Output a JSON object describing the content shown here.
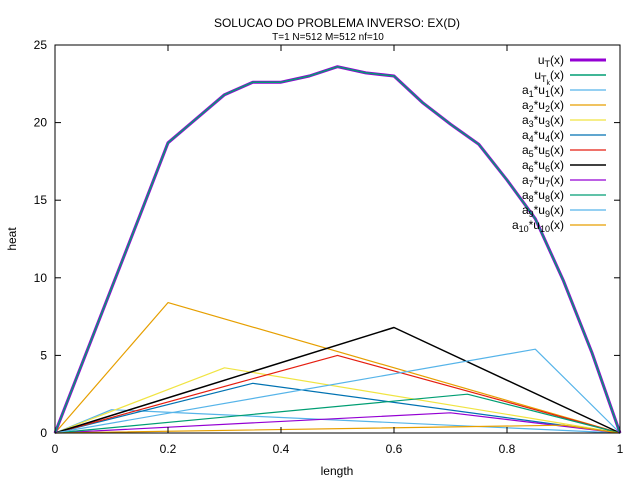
{
  "chart_data": {
    "type": "line",
    "title": "SOLUCAO DO PROBLEMA INVERSO: EX(D)",
    "subtitle": "T=1 N=512 M=512 nf=10",
    "xlabel": "length",
    "ylabel": "heat",
    "xlim": [
      0,
      1
    ],
    "ylim": [
      0,
      25
    ],
    "xticks": [
      0,
      0.2,
      0.4,
      0.6,
      0.8,
      1
    ],
    "yticks": [
      0,
      5,
      10,
      15,
      20,
      25
    ],
    "xtick_labels": [
      "0",
      "0.2",
      "0.4",
      "0.6",
      "0.8",
      "1"
    ],
    "ytick_labels": [
      "0",
      "5",
      "10",
      "15",
      "20",
      "25"
    ],
    "grid": false,
    "legend_position": "top-right",
    "series": [
      {
        "name": "u_T(x)",
        "label_base": "u",
        "label_sub": "T",
        "label_sub2": "",
        "label_suffix": "(x)",
        "color": "#9400d3",
        "width": 3,
        "x": [
          0,
          0.15,
          0.2,
          0.3,
          0.35,
          0.4,
          0.45,
          0.5,
          0.55,
          0.6,
          0.65,
          0.7,
          0.75,
          0.8,
          0.85,
          0.9,
          0.95,
          1
        ],
        "y": [
          0,
          14,
          18.7,
          21.8,
          22.6,
          22.6,
          23.0,
          23.6,
          23.2,
          23.0,
          21.3,
          19.9,
          18.6,
          16.3,
          13.8,
          9.8,
          5.2,
          0
        ]
      },
      {
        "name": "u_Tk(x)",
        "label_base": "u",
        "label_sub": "T",
        "label_sub2": "k",
        "label_suffix": "(x)",
        "color": "#009e73",
        "width": 1.5,
        "x": [
          0,
          0.15,
          0.2,
          0.3,
          0.35,
          0.4,
          0.45,
          0.5,
          0.55,
          0.6,
          0.65,
          0.7,
          0.75,
          0.8,
          0.85,
          0.9,
          0.95,
          1
        ],
        "y": [
          0,
          14,
          18.7,
          21.8,
          22.6,
          22.6,
          23.0,
          23.6,
          23.2,
          23.0,
          21.3,
          19.9,
          18.6,
          16.3,
          13.8,
          9.8,
          5.2,
          0
        ]
      },
      {
        "name": "a1*u1(x)",
        "label_base": "a",
        "label_sub": "1",
        "label_mid": "*u",
        "label_sub2": "1",
        "label_suffix": "(x)",
        "color": "#56b4e9",
        "width": 1.2,
        "x": [
          0,
          0.1,
          1
        ],
        "y": [
          0,
          1.5,
          0
        ]
      },
      {
        "name": "a2*u2(x)",
        "label_base": "a",
        "label_sub": "2",
        "label_mid": "*u",
        "label_sub2": "2",
        "label_suffix": "(x)",
        "color": "#e69f00",
        "width": 1.2,
        "x": [
          0,
          0.2,
          1
        ],
        "y": [
          0,
          8.4,
          0
        ]
      },
      {
        "name": "a3*u3(x)",
        "label_base": "a",
        "label_sub": "3",
        "label_mid": "*u",
        "label_sub2": "3",
        "label_suffix": "(x)",
        "color": "#f0e442",
        "width": 1.2,
        "x": [
          0,
          0.3,
          1
        ],
        "y": [
          0,
          4.2,
          0
        ]
      },
      {
        "name": "a4*u4(x)",
        "label_base": "a",
        "label_sub": "4",
        "label_mid": "*u",
        "label_sub2": "4",
        "label_suffix": "(x)",
        "color": "#0072b2",
        "width": 1.2,
        "x": [
          0,
          0.35,
          1
        ],
        "y": [
          0,
          3.2,
          0
        ]
      },
      {
        "name": "a5*u5(x)",
        "label_base": "a",
        "label_sub": "5",
        "label_mid": "*u",
        "label_sub2": "5",
        "label_suffix": "(x)",
        "color": "#e51e10",
        "width": 1.2,
        "x": [
          0,
          0.5,
          1
        ],
        "y": [
          0,
          5.0,
          0
        ]
      },
      {
        "name": "a6*u6(x)",
        "label_base": "a",
        "label_sub": "6",
        "label_mid": "*u",
        "label_sub2": "6",
        "label_suffix": "(x)",
        "color": "#000000",
        "width": 1.5,
        "x": [
          0,
          0.6,
          1
        ],
        "y": [
          0,
          6.8,
          0
        ]
      },
      {
        "name": "a7*u7(x)",
        "label_base": "a",
        "label_sub": "7",
        "label_mid": "*u",
        "label_sub2": "7",
        "label_suffix": "(x)",
        "color": "#9400d3",
        "width": 1.2,
        "x": [
          0,
          0.7,
          1
        ],
        "y": [
          0,
          1.3,
          0
        ]
      },
      {
        "name": "a8*u8(x)",
        "label_base": "a",
        "label_sub": "8",
        "label_mid": "*u",
        "label_sub2": "8",
        "label_suffix": "(x)",
        "color": "#009e73",
        "width": 1.2,
        "x": [
          0,
          0.73,
          1
        ],
        "y": [
          0,
          2.5,
          0
        ]
      },
      {
        "name": "a9*u9(x)",
        "label_base": "a",
        "label_sub": "9",
        "label_mid": "*u",
        "label_sub2": "9",
        "label_suffix": "(x)",
        "color": "#56b4e9",
        "width": 1.2,
        "x": [
          0,
          0.85,
          1
        ],
        "y": [
          0,
          5.4,
          0
        ]
      },
      {
        "name": "a10*u10(x)",
        "label_base": "a",
        "label_sub": "10",
        "label_mid": "*u",
        "label_sub2": "10",
        "label_suffix": "(x)",
        "color": "#e69f00",
        "width": 1.2,
        "x": [
          0,
          0.9,
          1
        ],
        "y": [
          0,
          0.5,
          0
        ]
      }
    ]
  }
}
